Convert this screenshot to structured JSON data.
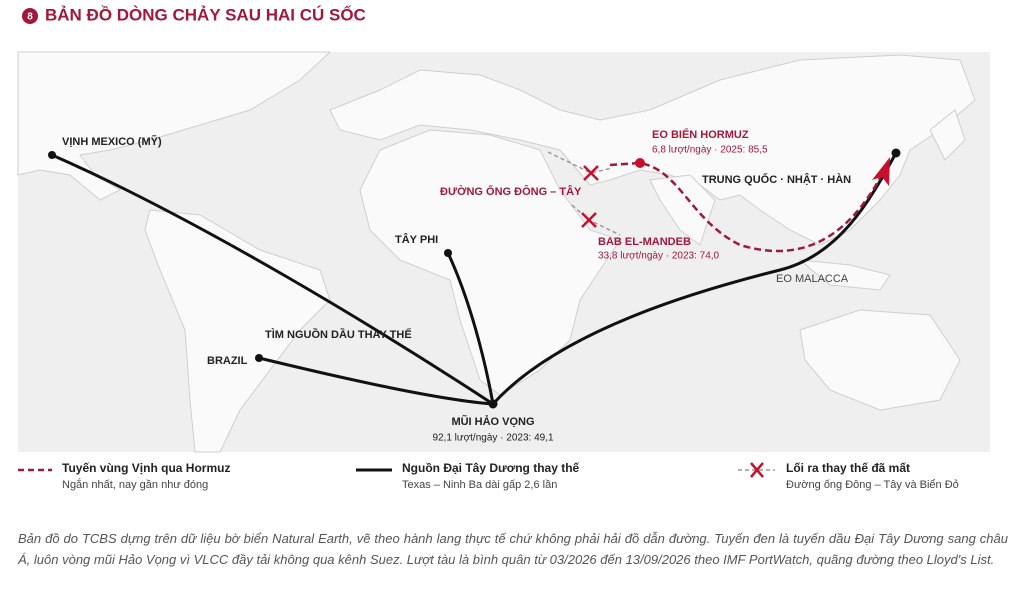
{
  "header": {
    "number": "8",
    "title": "BẢN ĐỒ DÒNG CHẢY SAU HAI CÚ SỐC"
  },
  "map": {
    "labels": {
      "gulf_mexico": "VỊNH MEXICO (MỸ)",
      "west_africa": "TÂY PHI",
      "brazil": "BRAZIL",
      "alt_source": "TÌM NGUỒN DẦU THAY THẾ",
      "cape": "MŨI HẢO VỌNG",
      "cape_sub": "92,1 lượt/ngày · 2023: 49,1",
      "hormuz": "EO BIỂN HORMUZ",
      "hormuz_sub": "6,8 lượt/ngày · 2025: 85,5",
      "pipeline": "ĐƯỜNG ỐNG ĐÔNG – TÂY",
      "bab": "BAB EL-MANDEB",
      "bab_sub": "33,8 lượt/ngày · 2023: 74,0",
      "east_asia": "TRUNG QUỐC · NHẬT · HÀN",
      "malacca": "EO MALACCA"
    }
  },
  "legend": [
    {
      "title": "Tuyến vùng Vịnh qua Hormuz",
      "sub": "Ngắn nhất, nay gần như đóng"
    },
    {
      "title": "Nguồn Đại Tây Dương thay thế",
      "sub": "Texas – Ninh Ba dài gấp 2,6 lần"
    },
    {
      "title": "Lối ra thay thế đã mất",
      "sub": "Đường ống Đông – Tây và Biển Đỏ"
    }
  ],
  "caption": "Bản đồ do TCBS dựng trên dữ liệu bờ biển Natural Earth, vẽ theo hành lang thực tế chứ không phải hải đồ dẫn đường. Tuyến đen là tuyến dầu Đại Tây Dương sang châu Á, luôn vòng mũi Hảo Vọng vì VLCC đầy tải không qua kênh Suez. Lượt tàu là bình quân từ 03/2026 đến 13/09/2026 theo IMF PortWatch, quãng đường theo Lloyd's List."
}
